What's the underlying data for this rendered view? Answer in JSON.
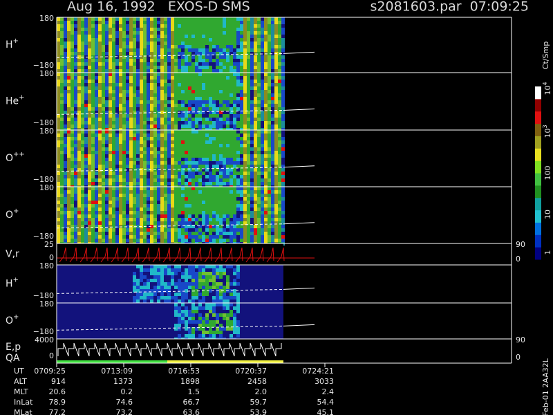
{
  "header": {
    "title": "Aug 16, 1992   EXOS-D SMS",
    "file": "s2081603.par  07:09:25"
  },
  "panels": [
    {
      "label": "H",
      "sup": "+",
      "top": "180",
      "bottom": "−180"
    },
    {
      "label": "He",
      "sup": "+",
      "top": "180",
      "bottom": "−180"
    },
    {
      "label": "O",
      "sup": "++",
      "top": "180",
      "bottom": "−180"
    },
    {
      "label": "O",
      "sup": "+",
      "top": "180",
      "bottom": "−180"
    },
    {
      "label": "V,r",
      "top": "25",
      "bottom": "0",
      "right_top": "90",
      "right_bottom": "0"
    },
    {
      "label": "H",
      "sup": "+",
      "top": "180",
      "bottom": "−180"
    },
    {
      "label": "O",
      "sup": "+",
      "top": "180",
      "bottom": "−180"
    },
    {
      "label": "E,p",
      "label2": "QA",
      "top": "4000",
      "bottom": "0",
      "right_top": "90",
      "right_bottom": "0"
    }
  ],
  "colorbar": {
    "unit": "Ct/Smp",
    "ticks": [
      {
        "base": "10",
        "exp": "4"
      },
      {
        "base": "10",
        "exp": "3"
      },
      "100",
      "10",
      "1"
    ]
  },
  "footer": {
    "id": "Feb-01 2AA32L"
  },
  "table": {
    "rows": [
      [
        "UT",
        "0709:25",
        "0713:09",
        "0716:53",
        "0720:37",
        "0724:21"
      ],
      [
        "ALT",
        "914",
        "1373",
        "1898",
        "2458",
        "3033"
      ],
      [
        "MLT",
        "20.6",
        "0.2",
        "1.5",
        "2.0",
        "2.4"
      ],
      [
        "InLat",
        "78.9",
        "74.6",
        "66.7",
        "59.7",
        "54.4"
      ],
      [
        "MLat",
        "77.2",
        "73.2",
        "63.6",
        "53.9",
        "45.1"
      ]
    ]
  }
}
